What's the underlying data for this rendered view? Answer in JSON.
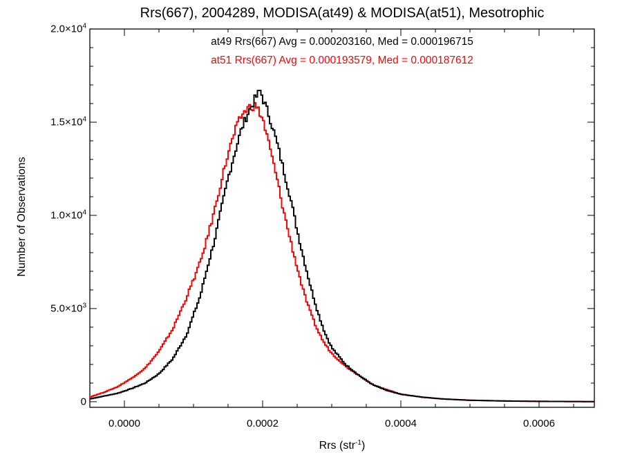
{
  "chart_data": {
    "type": "line",
    "title": "Rrs(667), 2004289, MODISA(at49) & MODISA(at51), Mesotrophic",
    "xlabel": "Rrs (str",
    "xlabel_sup": "-1",
    "xlabel_close": ")",
    "ylabel": "Number of Observations",
    "xlim": [
      -5e-05,
      0.00068
    ],
    "ylim": [
      -300,
      20000
    ],
    "x_ticks": [
      {
        "value": 0.0,
        "label": "0.0000"
      },
      {
        "value": 0.0002,
        "label": "0.0002"
      },
      {
        "value": 0.0004,
        "label": "0.0004"
      },
      {
        "value": 0.0006,
        "label": "0.0006"
      }
    ],
    "y_ticks": [
      {
        "value": 0,
        "label": "0",
        "sup": ""
      },
      {
        "value": 5000,
        "label": "5.0×10",
        "sup": "3"
      },
      {
        "value": 10000,
        "label": "1.0×10",
        "sup": "4"
      },
      {
        "value": 15000,
        "label": "1.5×10",
        "sup": "4"
      },
      {
        "value": 20000,
        "label": "2.0×10",
        "sup": "4"
      }
    ],
    "annotations": [
      {
        "text": "at49 Rrs(667) Avg = 0.000203160, Med = 0.000196715",
        "color": "#000000"
      },
      {
        "text": "at51 Rrs(667) Avg = 0.000193579, Med = 0.000187612",
        "color": "#ff0000"
      }
    ],
    "series": [
      {
        "color": "#000000",
        "x": [
          -5e-05,
          -3e-05,
          -1e-05,
          1e-05,
          3e-05,
          5e-05,
          7e-05,
          9e-05,
          0.00011,
          0.00012,
          0.00013,
          0.00014,
          0.00015,
          0.00016,
          0.00017,
          0.00018,
          0.00019,
          0.000197,
          0.0002,
          0.00021,
          0.00022,
          0.00023,
          0.00024,
          0.00025,
          0.00026,
          0.00027,
          0.00028,
          0.00029,
          0.0003,
          0.00032,
          0.00034,
          0.00036,
          0.00038,
          0.0004,
          0.00043,
          0.00046,
          0.0005,
          0.00055,
          0.0006,
          0.00065,
          0.00068
        ],
        "y": [
          150,
          300,
          450,
          700,
          1000,
          1500,
          2300,
          3600,
          5700,
          7200,
          8600,
          10300,
          12000,
          13400,
          14700,
          15600,
          16300,
          16700,
          16300,
          15300,
          14000,
          12500,
          11000,
          9200,
          7600,
          6100,
          4800,
          3700,
          2900,
          2000,
          1400,
          900,
          600,
          400,
          250,
          150,
          80,
          40,
          20,
          10,
          5
        ]
      },
      {
        "color": "#ff0000",
        "x": [
          -5e-05,
          -3e-05,
          -1e-05,
          1e-05,
          3e-05,
          5e-05,
          7e-05,
          9e-05,
          0.00011,
          0.00012,
          0.00013,
          0.00014,
          0.00015,
          0.00016,
          0.00017,
          0.00018,
          0.00019,
          0.0002,
          0.00021,
          0.00022,
          0.00023,
          0.00024,
          0.00025,
          0.00026,
          0.00027,
          0.00028,
          0.00029,
          0.0003,
          0.00032,
          0.00034,
          0.00036,
          0.00038,
          0.0004,
          0.00043,
          0.00046,
          0.0005,
          0.00055,
          0.0006,
          0.00065,
          0.00068
        ],
        "y": [
          250,
          500,
          800,
          1250,
          1800,
          2700,
          3900,
          5600,
          7500,
          8800,
          10200,
          11800,
          13300,
          14500,
          15400,
          15800,
          15900,
          15200,
          13700,
          12100,
          10300,
          8700,
          7200,
          5800,
          4700,
          3800,
          3100,
          2600,
          1900,
          1400,
          900,
          650,
          400,
          250,
          150,
          80,
          40,
          20,
          10,
          5
        ]
      }
    ]
  }
}
